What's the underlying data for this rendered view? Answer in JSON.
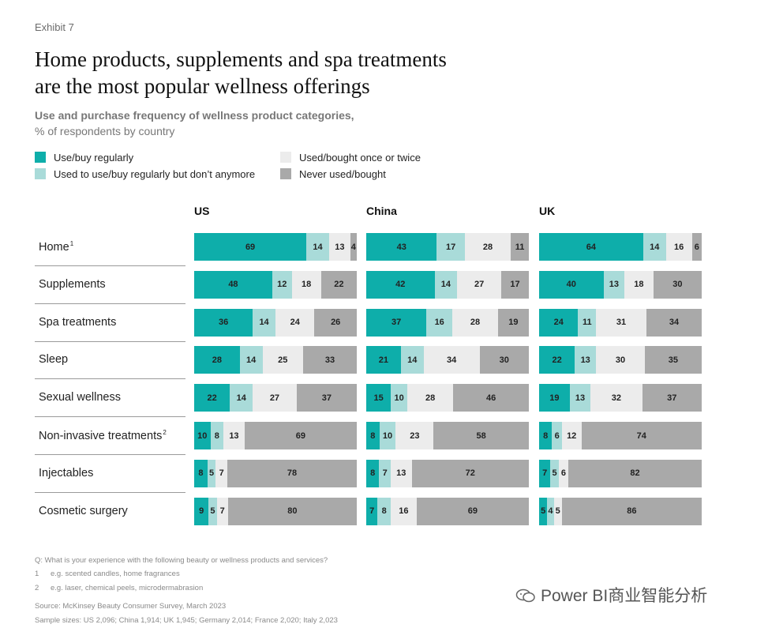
{
  "exhibit": "Exhibit 7",
  "title_line1": "Home products, supplements and spa treatments",
  "title_line2": "are the most popular wellness offerings",
  "subtitle_line1": "Use and purchase frequency of wellness product categories,",
  "subtitle_line2": "% of respondents by country",
  "colors": {
    "regular": "#0eaeaa",
    "lapsed": "#a9dbd9",
    "once": "#ececec",
    "never": "#a9a9a9"
  },
  "chart_data": {
    "type": "bar",
    "stacked": true,
    "orientation": "horizontal",
    "unit": "% of respondents",
    "legend": [
      {
        "key": "regular",
        "label": "Use/buy regularly"
      },
      {
        "key": "lapsed",
        "label": "Used to use/buy regularly but don’t anymore"
      },
      {
        "key": "once",
        "label": "Used/bought once or twice"
      },
      {
        "key": "never",
        "label": "Never used/bought"
      }
    ],
    "categories": [
      {
        "label": "Home",
        "note": "1"
      },
      {
        "label": "Supplements",
        "note": ""
      },
      {
        "label": "Spa treatments",
        "note": ""
      },
      {
        "label": "Sleep",
        "note": ""
      },
      {
        "label": "Sexual wellness",
        "note": ""
      },
      {
        "label": "Non-invasive treatments",
        "note": "2"
      },
      {
        "label": "Injectables",
        "note": ""
      },
      {
        "label": "Cosmetic surgery",
        "note": ""
      }
    ],
    "panels": [
      {
        "country": "US",
        "values": [
          [
            69,
            14,
            13,
            4
          ],
          [
            48,
            12,
            18,
            22
          ],
          [
            36,
            14,
            24,
            26
          ],
          [
            28,
            14,
            25,
            33
          ],
          [
            22,
            14,
            27,
            37
          ],
          [
            10,
            8,
            13,
            69
          ],
          [
            8,
            5,
            7,
            78
          ],
          [
            9,
            5,
            7,
            80
          ]
        ]
      },
      {
        "country": "China",
        "values": [
          [
            43,
            17,
            28,
            11
          ],
          [
            42,
            14,
            27,
            17
          ],
          [
            37,
            16,
            28,
            19
          ],
          [
            21,
            14,
            34,
            30
          ],
          [
            15,
            10,
            28,
            46
          ],
          [
            8,
            10,
            23,
            58
          ],
          [
            8,
            7,
            13,
            72
          ],
          [
            7,
            8,
            16,
            69
          ]
        ]
      },
      {
        "country": "UK",
        "values": [
          [
            64,
            14,
            16,
            6
          ],
          [
            40,
            13,
            18,
            30
          ],
          [
            24,
            11,
            31,
            34
          ],
          [
            22,
            13,
            30,
            35
          ],
          [
            19,
            13,
            32,
            37
          ],
          [
            8,
            6,
            12,
            74
          ],
          [
            7,
            5,
            6,
            82
          ],
          [
            5,
            4,
            5,
            86
          ]
        ]
      }
    ]
  },
  "footnotes": {
    "question": "Q: What is your experience with the following beauty or wellness products and services?",
    "note1_num": "1",
    "note1": "e.g. scented candles, home fragrances",
    "note2_num": "2",
    "note2": "e.g. laser, chemical peels, microdermabrasion",
    "source": "Source: McKinsey Beauty Consumer Survey, March 2023",
    "sample": "Sample sizes: US 2,096; China 1,914; UK 1,945; Germany 2,014; France 2,020; Italy 2,023"
  },
  "watermark": {
    "text": "Power BI商业智能分析",
    "icon": "wechat-icon"
  }
}
